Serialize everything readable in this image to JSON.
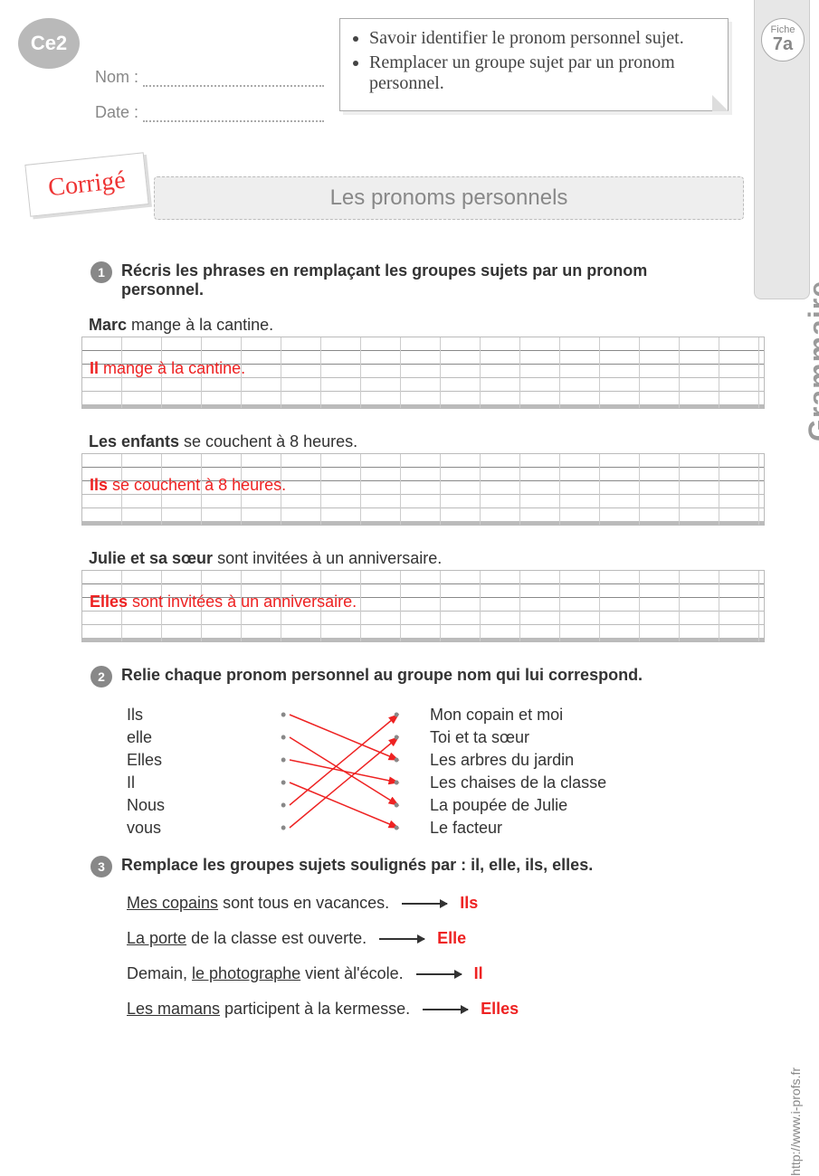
{
  "level": "Ce2",
  "fields": {
    "nom": "Nom :",
    "date": "Date :"
  },
  "fiche": {
    "label": "Fiche",
    "num": "7a"
  },
  "subject": "Grammaire",
  "objectives": [
    "Savoir identifier le pronom personnel sujet.",
    "Remplacer un groupe sujet par un pronom personnel."
  ],
  "corrige": "Corrigé",
  "title": "Les pronoms personnels",
  "ex1": {
    "num": "1",
    "head": "Récris les phrases en remplaçant les groupes sujets par un pronom personnel.",
    "items": [
      {
        "bold": "Marc",
        "rest": " mange à la cantine.",
        "ans_b": "Il",
        "ans_r": " mange à la cantine."
      },
      {
        "bold": "Les enfants",
        "rest": " se couchent à 8 heures.",
        "ans_b": "Ils",
        "ans_r": " se couchent à 8 heures."
      },
      {
        "bold": "Julie et sa sœur",
        "rest": " sont invitées à un anniversaire.",
        "ans_b": "Elles",
        "ans_r": " sont invitées à un anniversaire."
      }
    ]
  },
  "ex2": {
    "num": "2",
    "head": "Relie chaque pronom personnel au groupe nom qui lui correspond.",
    "left": [
      "Ils",
      "elle",
      "Elles",
      "Il",
      "Nous",
      "vous"
    ],
    "right": [
      "Mon copain et moi",
      "Toi et ta sœur",
      "Les arbres du jardin",
      "Les chaises de la classe",
      "La poupée de Julie",
      "Le facteur"
    ],
    "lines": [
      [
        0,
        2
      ],
      [
        1,
        4
      ],
      [
        2,
        3
      ],
      [
        3,
        5
      ],
      [
        4,
        0
      ],
      [
        5,
        1
      ]
    ],
    "line_color": "#e22"
  },
  "ex3": {
    "num": "3",
    "head": "Remplace les groupes sujets soulignés par : il, elle, ils, elles.",
    "rows": [
      {
        "pre": "",
        "u": "Mes copains",
        "post": " sont tous en vacances.",
        "ans": "Ils"
      },
      {
        "pre": "",
        "u": "La porte",
        "post": " de la classe est ouverte.",
        "ans": "Elle"
      },
      {
        "pre": "Demain, ",
        "u": "le photographe",
        "post": " vient àl'école.",
        "ans": "Il"
      },
      {
        "pre": "",
        "u": "Les mamans",
        "post": " participent à la kermesse.",
        "ans": "Elles"
      }
    ]
  },
  "site": "http://www.i-profs.fr"
}
